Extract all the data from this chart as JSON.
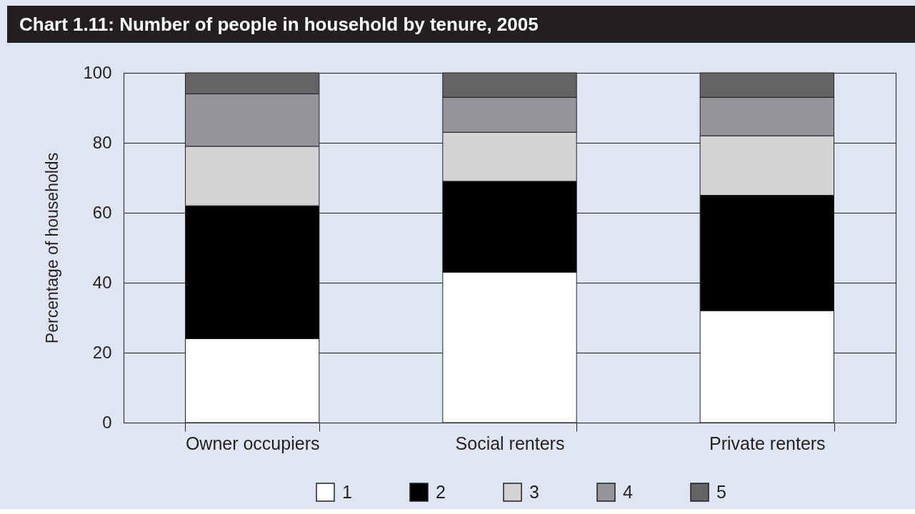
{
  "chart_data": {
    "type": "bar",
    "title": "Chart 1.11: Number of people in household by tenure, 2005",
    "ylabel": "Percentage of households",
    "categories": [
      "Owner occupiers",
      "Social renters",
      "Private renters"
    ],
    "stacked": true,
    "series": [
      {
        "name": "1",
        "color": "#ffffff",
        "values": [
          24,
          43,
          32
        ]
      },
      {
        "name": "2",
        "color": "#000000",
        "values": [
          38,
          26,
          33
        ]
      },
      {
        "name": "3",
        "color": "#d2d3d5",
        "values": [
          17,
          14,
          17
        ]
      },
      {
        "name": "4",
        "color": "#939598",
        "values": [
          15,
          10,
          11
        ]
      },
      {
        "name": "5",
        "color": "#646466",
        "values": [
          6,
          7,
          7
        ]
      }
    ],
    "ylim": [
      0,
      100
    ],
    "yticks": [
      0,
      20,
      40,
      60,
      80,
      100
    ],
    "grid": "y",
    "legend": "bottom"
  }
}
